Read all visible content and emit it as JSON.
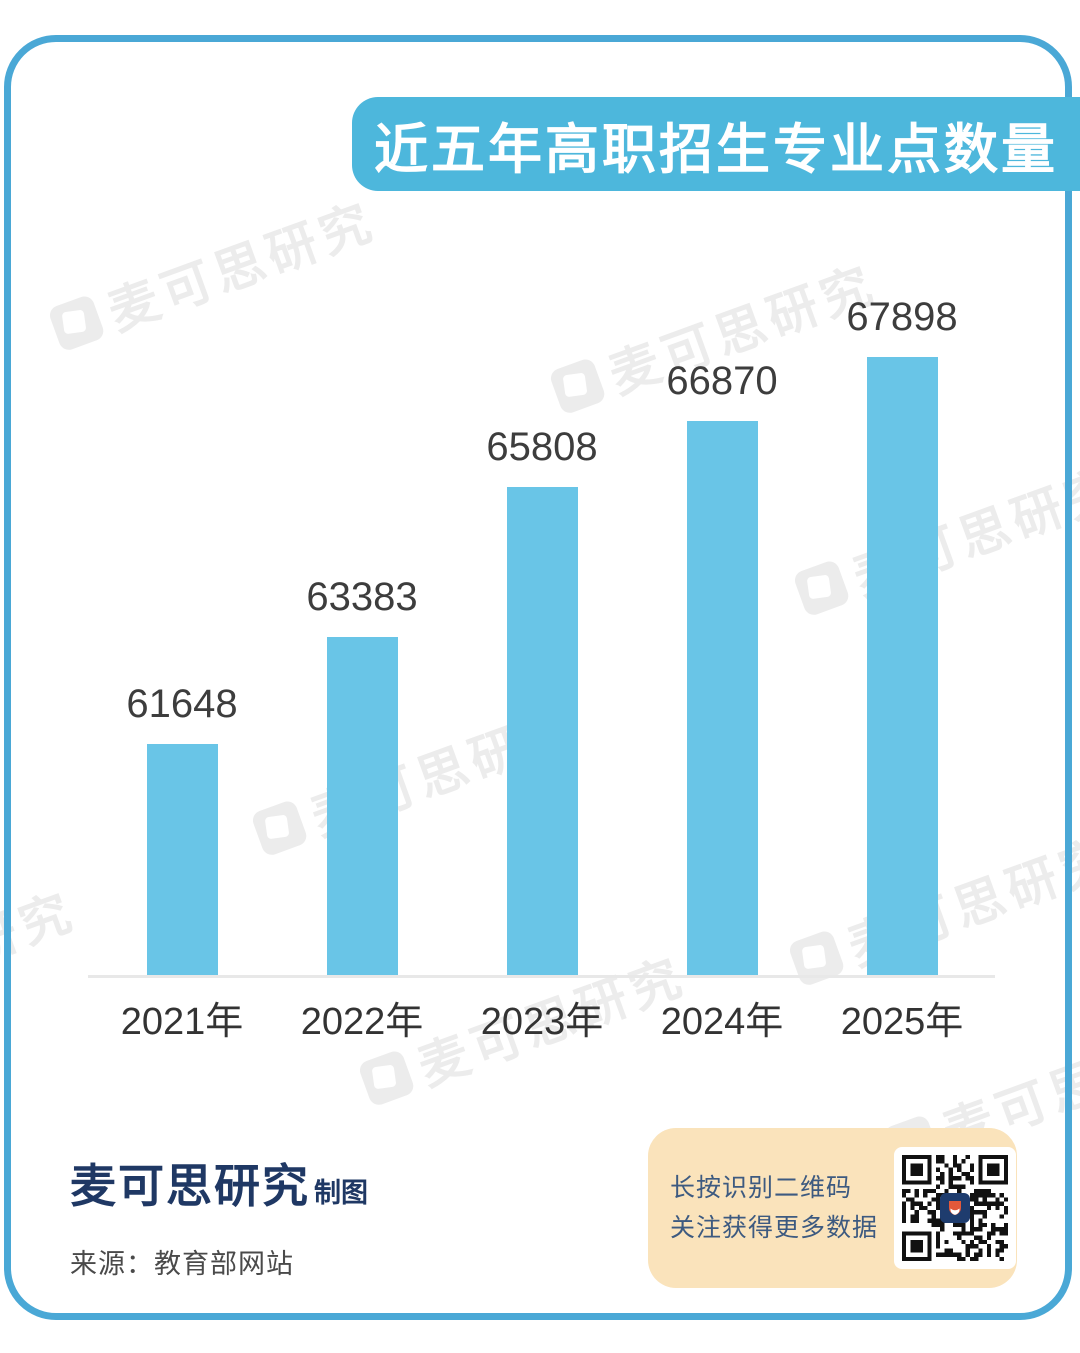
{
  "title_banner": {
    "text": "近五年高职招生专业点数量"
  },
  "chart_data": {
    "type": "bar",
    "title": "近五年高职招生专业点数量",
    "categories": [
      "2021年",
      "2022年",
      "2023年",
      "2024年",
      "2025年"
    ],
    "values": [
      61648,
      63383,
      65808,
      66870,
      67898
    ],
    "xlabel": "",
    "ylabel": "",
    "ylim": [
      57930,
      67898
    ],
    "grid": false,
    "legend_position": "none",
    "value_labels": true
  },
  "watermark": {
    "text": "麦可思研究"
  },
  "footer": {
    "brand": "麦可思研究",
    "brand_suffix": "制图",
    "source": "来源：教育部网站"
  },
  "qr_panel": {
    "line1": "长按识别二维码",
    "line2": "关注获得更多数据"
  },
  "colors": {
    "card_border": "#4aa8d6",
    "banner_bg": "#4db7dc",
    "bar": "#69c5e7",
    "baseline": "#e8e8e8",
    "value_label": "#3d3d3d",
    "axis_label": "#333333",
    "brand_navy": "#1f3864",
    "source_text": "#4a4a4a",
    "qr_panel_bg": "#fae3bb",
    "qr_panel_text": "#3d5a80",
    "watermark": "#ececec"
  }
}
